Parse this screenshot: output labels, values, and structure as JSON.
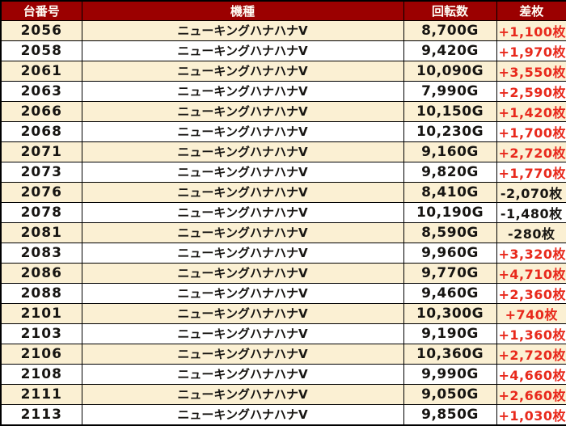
{
  "colors": {
    "header_bg": "#9b0000",
    "header_text": "#fffdf5",
    "row_cream": "#fbf0d3",
    "row_white": "#ffffff",
    "positive_value": "#e8291c",
    "negative_value": "#171512",
    "border": "#000000"
  },
  "table": {
    "headers": {
      "machine_no": "台番号",
      "model": "機種",
      "spins": "回転数",
      "diff": "差枚"
    },
    "rows": [
      {
        "machine_no": "2056",
        "model": "ニューキングハナハナV",
        "spins": "8,700G",
        "diff": "+1,100枚"
      },
      {
        "machine_no": "2058",
        "model": "ニューキングハナハナV",
        "spins": "9,420G",
        "diff": "+1,970枚"
      },
      {
        "machine_no": "2061",
        "model": "ニューキングハナハナV",
        "spins": "10,090G",
        "diff": "+3,550枚"
      },
      {
        "machine_no": "2063",
        "model": "ニューキングハナハナV",
        "spins": "7,990G",
        "diff": "+2,590枚"
      },
      {
        "machine_no": "2066",
        "model": "ニューキングハナハナV",
        "spins": "10,150G",
        "diff": "+1,420枚"
      },
      {
        "machine_no": "2068",
        "model": "ニューキングハナハナV",
        "spins": "10,230G",
        "diff": "+1,700枚"
      },
      {
        "machine_no": "2071",
        "model": "ニューキングハナハナV",
        "spins": "9,160G",
        "diff": "+2,720枚"
      },
      {
        "machine_no": "2073",
        "model": "ニューキングハナハナV",
        "spins": "9,820G",
        "diff": "+1,770枚"
      },
      {
        "machine_no": "2076",
        "model": "ニューキングハナハナV",
        "spins": "8,410G",
        "diff": "-2,070枚"
      },
      {
        "machine_no": "2078",
        "model": "ニューキングハナハナV",
        "spins": "10,190G",
        "diff": "-1,480枚"
      },
      {
        "machine_no": "2081",
        "model": "ニューキングハナハナV",
        "spins": "8,590G",
        "diff": "-280枚"
      },
      {
        "machine_no": "2083",
        "model": "ニューキングハナハナV",
        "spins": "9,960G",
        "diff": "+3,320枚"
      },
      {
        "machine_no": "2086",
        "model": "ニューキングハナハナV",
        "spins": "9,770G",
        "diff": "+4,710枚"
      },
      {
        "machine_no": "2088",
        "model": "ニューキングハナハナV",
        "spins": "9,460G",
        "diff": "+2,360枚"
      },
      {
        "machine_no": "2101",
        "model": "ニューキングハナハナV",
        "spins": "10,300G",
        "diff": "+740枚"
      },
      {
        "machine_no": "2103",
        "model": "ニューキングハナハナV",
        "spins": "9,190G",
        "diff": "+1,360枚"
      },
      {
        "machine_no": "2106",
        "model": "ニューキングハナハナV",
        "spins": "10,360G",
        "diff": "+2,720枚"
      },
      {
        "machine_no": "2108",
        "model": "ニューキングハナハナV",
        "spins": "9,990G",
        "diff": "+4,660枚"
      },
      {
        "machine_no": "2111",
        "model": "ニューキングハナハナV",
        "spins": "9,050G",
        "diff": "+2,660枚"
      },
      {
        "machine_no": "2113",
        "model": "ニューキングハナハナV",
        "spins": "9,850G",
        "diff": "+1,030枚"
      }
    ]
  }
}
